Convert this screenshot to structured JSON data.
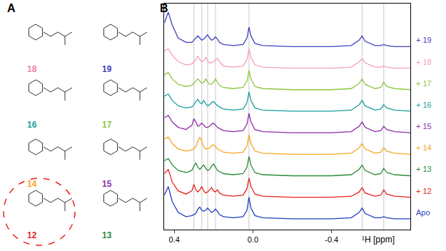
{
  "chart_data": {
    "type": "line",
    "panel_labels": [
      "A",
      "B"
    ],
    "compounds": [
      {
        "label": "18",
        "color": "#f0839f"
      },
      {
        "label": "19",
        "color": "#3f3fbf"
      },
      {
        "label": "16",
        "color": "#1a9e9e"
      },
      {
        "label": "17",
        "color": "#8cc63f"
      },
      {
        "label": "14",
        "color": "#f5a623"
      },
      {
        "label": "15",
        "color": "#8e2ca8"
      },
      {
        "label": "12",
        "color": "#e8231c"
      },
      {
        "label": "13",
        "color": "#2e8b3a"
      }
    ],
    "circled": "12",
    "xlabel": "¹H [ppm]",
    "xlim": [
      0.45,
      -0.8
    ],
    "xticks": [
      0.4,
      {
        "value": 0,
        "label": "0.0"
      },
      -0.4
    ],
    "ylim": [
      0,
      10.5
    ],
    "tick_labels": "x",
    "reference_lines": [
      0.3,
      0.26,
      0.23,
      0.19,
      0.02,
      -0.555,
      -0.665
    ],
    "x": [
      0.45,
      0.43,
      0.41,
      0.38,
      0.34,
      0.31,
      0.3,
      0.29,
      0.28,
      0.27,
      0.26,
      0.25,
      0.24,
      0.23,
      0.22,
      0.21,
      0.2,
      0.19,
      0.18,
      0.17,
      0.15,
      0.1,
      0.05,
      0.03,
      0.02,
      0.01,
      -0.01,
      -0.05,
      -0.2,
      -0.4,
      -0.5,
      -0.54,
      -0.555,
      -0.57,
      -0.62,
      -0.65,
      -0.665,
      -0.68,
      -0.72,
      -0.8
    ],
    "series": [
      {
        "name": "Apo",
        "color": "#1f3fbf",
        "values": [
          1.6,
          2.0,
          1.3,
          0.8,
          0.6,
          0.65,
          0.7,
          0.75,
          0.95,
          1.05,
          0.9,
          0.85,
          0.9,
          1.0,
          0.9,
          0.8,
          0.85,
          0.95,
          0.85,
          0.7,
          0.6,
          0.55,
          0.6,
          0.9,
          1.5,
          1.0,
          0.65,
          0.55,
          0.5,
          0.5,
          0.55,
          0.8,
          1.0,
          0.75,
          0.55,
          0.55,
          0.6,
          0.55,
          0.5,
          0.5
        ]
      },
      {
        "name": "+ 12",
        "color": "#e8231c",
        "values": [
          2.6,
          2.8,
          2.2,
          1.8,
          1.65,
          1.8,
          2.1,
          1.85,
          1.75,
          1.85,
          2.0,
          1.8,
          1.7,
          1.75,
          1.85,
          1.95,
          1.8,
          1.75,
          1.85,
          1.7,
          1.6,
          1.55,
          1.6,
          1.9,
          2.4,
          2.0,
          1.65,
          1.55,
          1.5,
          1.5,
          1.55,
          1.75,
          1.95,
          1.7,
          1.55,
          1.6,
          1.85,
          1.65,
          1.55,
          1.5
        ]
      },
      {
        "name": "+ 13",
        "color": "#2e8b3a",
        "values": [
          3.2,
          3.3,
          3.0,
          2.75,
          2.65,
          2.75,
          2.95,
          3.1,
          2.9,
          2.8,
          2.9,
          3.0,
          2.85,
          2.75,
          2.8,
          2.95,
          3.05,
          2.9,
          2.75,
          2.7,
          2.6,
          2.55,
          2.6,
          2.9,
          3.4,
          3.0,
          2.65,
          2.55,
          2.5,
          2.5,
          2.55,
          2.8,
          3.0,
          2.75,
          2.55,
          2.6,
          2.85,
          2.65,
          2.55,
          2.5
        ]
      },
      {
        "name": "+ 14",
        "color": "#f5a623",
        "values": [
          4.2,
          4.3,
          4.0,
          3.75,
          3.65,
          3.7,
          3.75,
          3.85,
          4.1,
          4.3,
          4.1,
          3.85,
          3.75,
          3.75,
          3.8,
          3.9,
          3.95,
          3.85,
          3.75,
          3.7,
          3.6,
          3.55,
          3.6,
          3.9,
          4.4,
          4.0,
          3.65,
          3.55,
          3.5,
          3.5,
          3.55,
          3.8,
          4.0,
          3.75,
          3.55,
          3.6,
          3.8,
          3.65,
          3.55,
          3.5
        ]
      },
      {
        "name": "+ 15",
        "color": "#8e2ca8",
        "values": [
          5.2,
          5.3,
          5.0,
          4.75,
          4.65,
          4.85,
          5.15,
          5.0,
          4.8,
          4.85,
          4.95,
          4.85,
          4.75,
          4.75,
          4.8,
          4.9,
          4.95,
          4.85,
          4.75,
          4.7,
          4.6,
          4.55,
          4.6,
          4.9,
          5.4,
          5.0,
          4.65,
          4.55,
          4.5,
          4.5,
          4.55,
          4.8,
          5.0,
          4.75,
          4.55,
          4.6,
          4.8,
          4.65,
          4.55,
          4.5
        ]
      },
      {
        "name": "+ 16",
        "color": "#1a9e9e",
        "values": [
          6.2,
          6.3,
          6.0,
          5.75,
          5.65,
          5.7,
          5.8,
          5.95,
          6.05,
          5.9,
          5.85,
          6.0,
          5.85,
          5.75,
          5.8,
          5.9,
          5.95,
          5.85,
          5.75,
          5.7,
          5.6,
          5.55,
          5.6,
          5.9,
          6.4,
          6.0,
          5.65,
          5.55,
          5.5,
          5.5,
          5.55,
          5.8,
          6.0,
          5.75,
          5.55,
          5.6,
          5.8,
          5.65,
          5.55,
          5.5
        ]
      },
      {
        "name": "+ 17",
        "color": "#8cc63f",
        "values": [
          7.2,
          7.3,
          7.0,
          6.75,
          6.65,
          6.7,
          6.8,
          6.9,
          7.0,
          6.9,
          6.8,
          6.85,
          7.0,
          6.85,
          6.75,
          6.75,
          6.85,
          7.0,
          6.85,
          6.7,
          6.6,
          6.55,
          6.6,
          6.9,
          7.4,
          7.0,
          6.65,
          6.55,
          6.5,
          6.5,
          6.55,
          6.8,
          7.0,
          6.75,
          6.55,
          6.6,
          6.85,
          6.65,
          6.55,
          6.5
        ]
      },
      {
        "name": "+ 18",
        "color": "#f4a0b5",
        "values": [
          8.3,
          8.4,
          8.1,
          7.8,
          7.65,
          7.7,
          7.8,
          7.9,
          8.05,
          7.9,
          7.8,
          7.85,
          8.0,
          7.85,
          7.75,
          7.75,
          7.8,
          7.9,
          7.95,
          7.8,
          7.6,
          7.55,
          7.6,
          7.9,
          8.4,
          8.0,
          7.65,
          7.55,
          7.5,
          7.5,
          7.55,
          7.8,
          7.95,
          7.75,
          7.55,
          7.55,
          7.6,
          7.55,
          7.5,
          7.5
        ]
      },
      {
        "name": "+ 19",
        "color": "#3f3fbf",
        "values": [
          9.6,
          10.1,
          9.5,
          8.9,
          8.7,
          8.7,
          8.8,
          8.9,
          9.0,
          8.9,
          8.8,
          8.85,
          8.95,
          9.05,
          8.9,
          8.8,
          8.85,
          8.95,
          8.85,
          8.7,
          8.6,
          8.55,
          8.6,
          8.9,
          9.4,
          9.0,
          8.65,
          8.55,
          8.5,
          8.5,
          8.55,
          8.8,
          9.0,
          8.75,
          8.55,
          8.55,
          8.6,
          8.55,
          8.5,
          8.5
        ]
      }
    ]
  }
}
